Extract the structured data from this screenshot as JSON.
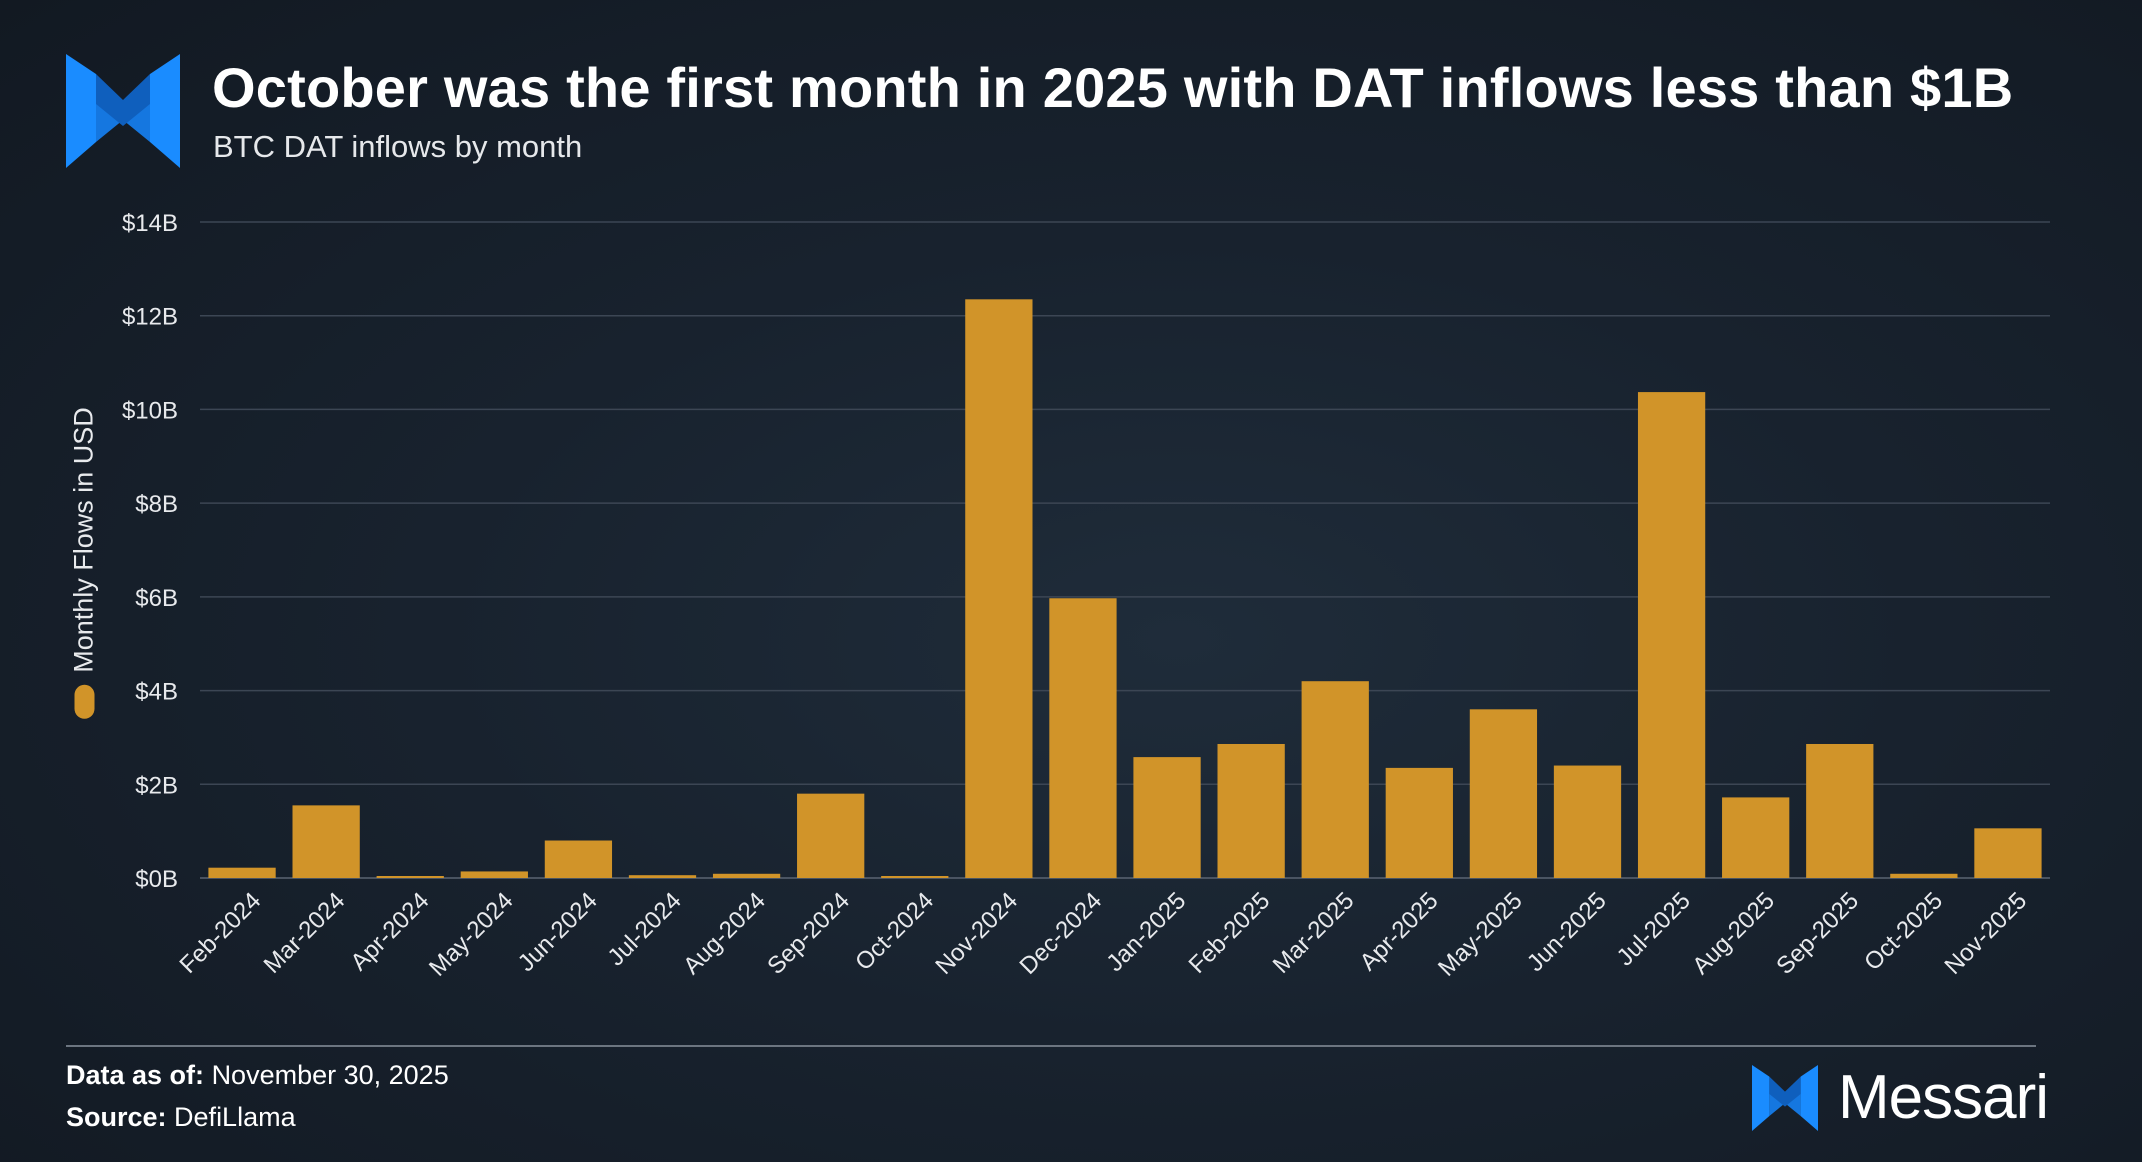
{
  "header": {
    "title": "October was the first month in 2025 with DAT inflows less than $1B",
    "subtitle": "BTC DAT inflows by month"
  },
  "chart_data": {
    "type": "bar",
    "title": "October was the first month in 2025 with DAT inflows less than $1B",
    "subtitle": "BTC DAT inflows by month",
    "xlabel": "",
    "ylabel": "Monthly Flows in USD",
    "unit": "B USD",
    "ylim": [
      0,
      14
    ],
    "yticks": [
      0,
      2,
      4,
      6,
      8,
      10,
      12,
      14
    ],
    "ytick_labels": [
      "$0B",
      "$2B",
      "$4B",
      "$6B",
      "$8B",
      "$10B",
      "$12B",
      "$14B"
    ],
    "grid": true,
    "legend": [
      {
        "name": "Monthly Flows in USD",
        "color": "#d19429"
      }
    ],
    "legend_position": "left, alongside y-axis label",
    "bar_color": "#d19429",
    "categories": [
      "Feb-2024",
      "Mar-2024",
      "Apr-2024",
      "May-2024",
      "Jun-2024",
      "Jul-2024",
      "Aug-2024",
      "Sep-2024",
      "Oct-2024",
      "Nov-2024",
      "Dec-2024",
      "Jan-2025",
      "Feb-2025",
      "Mar-2025",
      "Apr-2025",
      "May-2025",
      "Jun-2025",
      "Jul-2025",
      "Aug-2025",
      "Sep-2025",
      "Oct-2025",
      "Nov-2025"
    ],
    "values": [
      0.22,
      1.55,
      0.03,
      0.14,
      0.8,
      0.06,
      0.09,
      1.8,
      0.03,
      12.35,
      5.97,
      2.58,
      2.86,
      4.2,
      2.35,
      3.6,
      2.4,
      10.37,
      1.72,
      2.86,
      0.09,
      1.06
    ]
  },
  "footer": {
    "data_as_of_label": "Data as of:",
    "data_as_of_value": "November 30, 2025",
    "source_label": "Source:",
    "source_value": "DefiLlama",
    "brand_name": "Messari"
  },
  "icons": {
    "top_logo": "messari-logo-icon",
    "brand_logo": "messari-logo-icon"
  },
  "colors": {
    "background": "#18222e",
    "bar": "#d19429",
    "logo_blue": "#1a8cff",
    "grid": "#3c4654",
    "text": "#ffffff"
  }
}
